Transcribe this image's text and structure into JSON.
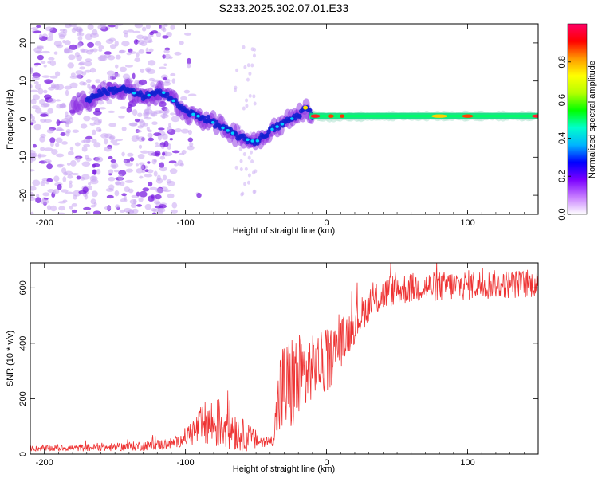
{
  "title": "S233.2025.302.07.01.E33",
  "chart_data": [
    {
      "type": "heatmap",
      "name": "spectrogram",
      "xlabel": "Height of straight line (km)",
      "ylabel": "Frequency (Hz)",
      "xlim": [
        -210,
        150
      ],
      "ylim": [
        -25,
        25
      ],
      "xticks": [
        -200,
        -100,
        0,
        100
      ],
      "yticks": [
        -20,
        -10,
        0,
        10,
        20
      ],
      "colorbar": {
        "label": "Normalized spectral amplitude",
        "range": [
          0,
          1
        ],
        "ticks": [
          "0.0",
          "0.2",
          "0.4",
          "0.6",
          "0.8"
        ],
        "colors": [
          "#ffffff",
          "#c77dff",
          "#7b00ff",
          "#0000ff",
          "#00b4ff",
          "#00ffcc",
          "#00ff00",
          "#b4ff00",
          "#ffff00",
          "#ff9900",
          "#ff0000",
          "#ff0066"
        ]
      },
      "ridge": [
        {
          "x": -175,
          "f": 4
        },
        {
          "x": -160,
          "f": 7
        },
        {
          "x": -145,
          "f": 8
        },
        {
          "x": -130,
          "f": 6
        },
        {
          "x": -115,
          "f": 7
        },
        {
          "x": -100,
          "f": 2
        },
        {
          "x": -85,
          "f": 0
        },
        {
          "x": -70,
          "f": -3
        },
        {
          "x": -60,
          "f": -5
        },
        {
          "x": -50,
          "f": -6
        },
        {
          "x": -40,
          "f": -3
        },
        {
          "x": -30,
          "f": -1
        },
        {
          "x": -20,
          "f": 1
        },
        {
          "x": -15,
          "f": 3
        },
        {
          "x": -10,
          "f": 1
        },
        {
          "x": 0,
          "f": 0.5
        },
        {
          "x": 50,
          "f": 0.8
        },
        {
          "x": 100,
          "f": 0.8
        },
        {
          "x": 150,
          "f": 0.8
        }
      ]
    },
    {
      "type": "line",
      "name": "snr",
      "xlabel": "Height of straight line (km)",
      "ylabel": "SNR (10 * v/v)",
      "xlim": [
        -210,
        150
      ],
      "ylim": [
        0,
        690
      ],
      "xticks": [
        -200,
        -100,
        0,
        100
      ],
      "yticks": [
        0,
        200,
        400,
        600
      ],
      "color": "#ee3333",
      "envelope": [
        {
          "x": -210,
          "mean": 20,
          "spread": 10
        },
        {
          "x": -150,
          "mean": 25,
          "spread": 15
        },
        {
          "x": -115,
          "mean": 35,
          "spread": 20
        },
        {
          "x": -105,
          "mean": 45,
          "spread": 20
        },
        {
          "x": -95,
          "mean": 80,
          "spread": 50
        },
        {
          "x": -85,
          "mean": 110,
          "spread": 90
        },
        {
          "x": -70,
          "mean": 110,
          "spread": 100
        },
        {
          "x": -60,
          "mean": 70,
          "spread": 60
        },
        {
          "x": -45,
          "mean": 40,
          "spread": 25
        },
        {
          "x": -38,
          "mean": 50,
          "spread": 20
        },
        {
          "x": -33,
          "mean": 220,
          "spread": 180
        },
        {
          "x": -25,
          "mean": 250,
          "spread": 190
        },
        {
          "x": -18,
          "mean": 260,
          "spread": 180
        },
        {
          "x": -10,
          "mean": 320,
          "spread": 110
        },
        {
          "x": 0,
          "mean": 330,
          "spread": 120
        },
        {
          "x": 10,
          "mean": 400,
          "spread": 90
        },
        {
          "x": 20,
          "mean": 470,
          "spread": 70
        },
        {
          "x": 30,
          "mean": 540,
          "spread": 60
        },
        {
          "x": 45,
          "mean": 590,
          "spread": 60
        },
        {
          "x": 60,
          "mean": 600,
          "spread": 55
        },
        {
          "x": 100,
          "mean": 610,
          "spread": 55
        },
        {
          "x": 150,
          "mean": 615,
          "spread": 50
        }
      ]
    }
  ]
}
